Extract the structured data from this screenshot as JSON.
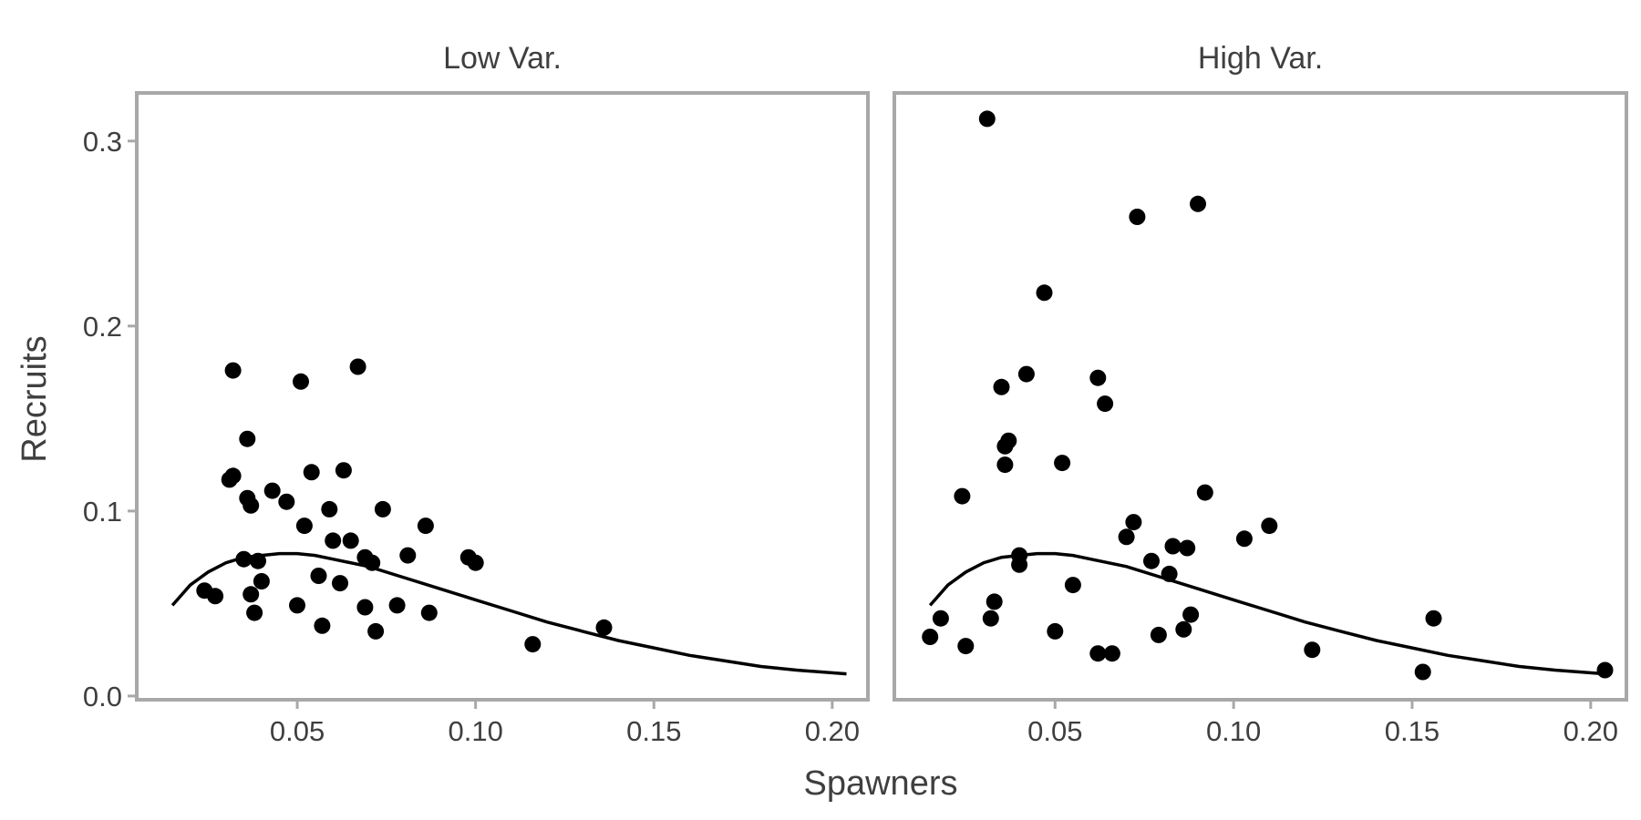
{
  "chart_data": {
    "type": "scatter",
    "xlabel": "Spawners",
    "ylabel": "Recruits",
    "xlim": [
      0.005,
      0.21
    ],
    "ylim": [
      -0.002,
      0.326
    ],
    "x_ticks": [
      {
        "value": 0.05,
        "label": "0.05"
      },
      {
        "value": 0.1,
        "label": "0.10"
      },
      {
        "value": 0.15,
        "label": "0.15"
      },
      {
        "value": 0.2,
        "label": "0.20"
      }
    ],
    "y_ticks": [
      {
        "value": 0.0,
        "label": "0.0"
      },
      {
        "value": 0.1,
        "label": "0.1"
      },
      {
        "value": 0.2,
        "label": "0.2"
      },
      {
        "value": 0.3,
        "label": "0.3"
      }
    ],
    "grid": false,
    "colors": {
      "points": "#000000",
      "line": "#000000",
      "border": "#a8a8a8",
      "text": "#3f3f3f"
    },
    "panels": [
      {
        "title": "Low Var.",
        "points": [
          [
            0.024,
            0.057
          ],
          [
            0.027,
            0.054
          ],
          [
            0.031,
            0.117
          ],
          [
            0.032,
            0.119
          ],
          [
            0.032,
            0.176
          ],
          [
            0.035,
            0.074
          ],
          [
            0.036,
            0.139
          ],
          [
            0.036,
            0.107
          ],
          [
            0.037,
            0.103
          ],
          [
            0.037,
            0.055
          ],
          [
            0.038,
            0.045
          ],
          [
            0.039,
            0.073
          ],
          [
            0.04,
            0.062
          ],
          [
            0.043,
            0.111
          ],
          [
            0.047,
            0.105
          ],
          [
            0.05,
            0.049
          ],
          [
            0.051,
            0.17
          ],
          [
            0.052,
            0.092
          ],
          [
            0.054,
            0.121
          ],
          [
            0.056,
            0.065
          ],
          [
            0.057,
            0.038
          ],
          [
            0.059,
            0.101
          ],
          [
            0.06,
            0.084
          ],
          [
            0.062,
            0.061
          ],
          [
            0.063,
            0.122
          ],
          [
            0.065,
            0.084
          ],
          [
            0.067,
            0.178
          ],
          [
            0.069,
            0.075
          ],
          [
            0.069,
            0.048
          ],
          [
            0.071,
            0.072
          ],
          [
            0.072,
            0.035
          ],
          [
            0.074,
            0.101
          ],
          [
            0.078,
            0.049
          ],
          [
            0.081,
            0.076
          ],
          [
            0.086,
            0.092
          ],
          [
            0.087,
            0.045
          ],
          [
            0.098,
            0.075
          ],
          [
            0.1,
            0.072
          ],
          [
            0.116,
            0.028
          ],
          [
            0.136,
            0.037
          ]
        ],
        "curve": [
          [
            0.015,
            0.049
          ],
          [
            0.02,
            0.06
          ],
          [
            0.025,
            0.067
          ],
          [
            0.03,
            0.072
          ],
          [
            0.035,
            0.075
          ],
          [
            0.04,
            0.076
          ],
          [
            0.045,
            0.077
          ],
          [
            0.05,
            0.077
          ],
          [
            0.055,
            0.076
          ],
          [
            0.06,
            0.074
          ],
          [
            0.07,
            0.07
          ],
          [
            0.08,
            0.064
          ],
          [
            0.09,
            0.058
          ],
          [
            0.1,
            0.052
          ],
          [
            0.11,
            0.046
          ],
          [
            0.12,
            0.04
          ],
          [
            0.13,
            0.035
          ],
          [
            0.14,
            0.03
          ],
          [
            0.15,
            0.026
          ],
          [
            0.16,
            0.022
          ],
          [
            0.17,
            0.019
          ],
          [
            0.18,
            0.016
          ],
          [
            0.19,
            0.014
          ],
          [
            0.204,
            0.012
          ]
        ]
      },
      {
        "title": "High Var.",
        "points": [
          [
            0.015,
            0.032
          ],
          [
            0.018,
            0.042
          ],
          [
            0.024,
            0.108
          ],
          [
            0.025,
            0.027
          ],
          [
            0.031,
            0.312
          ],
          [
            0.032,
            0.042
          ],
          [
            0.033,
            0.051
          ],
          [
            0.035,
            0.167
          ],
          [
            0.036,
            0.125
          ],
          [
            0.036,
            0.135
          ],
          [
            0.037,
            0.138
          ],
          [
            0.04,
            0.071
          ],
          [
            0.04,
            0.076
          ],
          [
            0.042,
            0.174
          ],
          [
            0.047,
            0.218
          ],
          [
            0.05,
            0.035
          ],
          [
            0.052,
            0.126
          ],
          [
            0.055,
            0.06
          ],
          [
            0.062,
            0.023
          ],
          [
            0.062,
            0.172
          ],
          [
            0.064,
            0.158
          ],
          [
            0.066,
            0.023
          ],
          [
            0.07,
            0.086
          ],
          [
            0.072,
            0.094
          ],
          [
            0.073,
            0.259
          ],
          [
            0.077,
            0.073
          ],
          [
            0.079,
            0.033
          ],
          [
            0.082,
            0.066
          ],
          [
            0.083,
            0.081
          ],
          [
            0.086,
            0.036
          ],
          [
            0.087,
            0.08
          ],
          [
            0.088,
            0.044
          ],
          [
            0.09,
            0.266
          ],
          [
            0.092,
            0.11
          ],
          [
            0.103,
            0.085
          ],
          [
            0.11,
            0.092
          ],
          [
            0.122,
            0.025
          ],
          [
            0.153,
            0.013
          ],
          [
            0.156,
            0.042
          ],
          [
            0.204,
            0.014
          ]
        ],
        "curve": [
          [
            0.015,
            0.049
          ],
          [
            0.02,
            0.06
          ],
          [
            0.025,
            0.067
          ],
          [
            0.03,
            0.072
          ],
          [
            0.035,
            0.075
          ],
          [
            0.04,
            0.076
          ],
          [
            0.045,
            0.077
          ],
          [
            0.05,
            0.077
          ],
          [
            0.055,
            0.076
          ],
          [
            0.06,
            0.074
          ],
          [
            0.07,
            0.07
          ],
          [
            0.08,
            0.064
          ],
          [
            0.09,
            0.058
          ],
          [
            0.1,
            0.052
          ],
          [
            0.11,
            0.046
          ],
          [
            0.12,
            0.04
          ],
          [
            0.13,
            0.035
          ],
          [
            0.14,
            0.03
          ],
          [
            0.15,
            0.026
          ],
          [
            0.16,
            0.022
          ],
          [
            0.17,
            0.019
          ],
          [
            0.18,
            0.016
          ],
          [
            0.19,
            0.014
          ],
          [
            0.204,
            0.012
          ]
        ]
      }
    ]
  }
}
